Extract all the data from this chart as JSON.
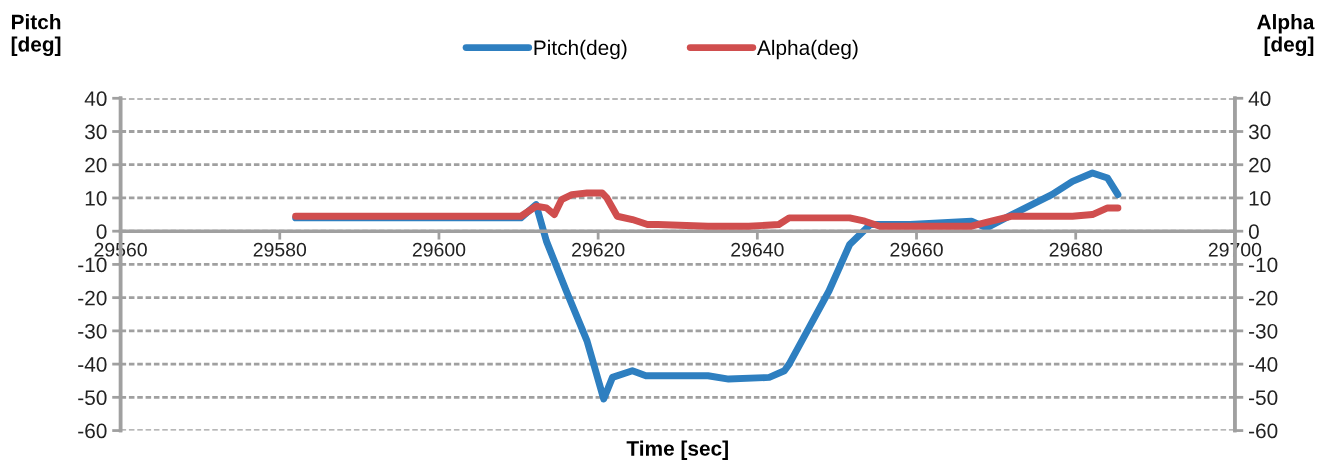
{
  "chart_data": {
    "type": "line",
    "xlabel": "Time [sec]",
    "ylabel": "Pitch\n[deg]",
    "y2label": "Alpha\n[deg]",
    "xlim": [
      29560,
      29700
    ],
    "xticks": [
      29560,
      29580,
      29600,
      29620,
      29640,
      29660,
      29680,
      29700
    ],
    "ylim": [
      -60,
      40
    ],
    "yticks": [
      -60,
      -50,
      -40,
      -30,
      -20,
      -10,
      0,
      10,
      20,
      30,
      40
    ],
    "y2lim": [
      -60,
      40
    ],
    "y2ticks": [
      -60,
      -50,
      -40,
      -30,
      -20,
      -10,
      0,
      10,
      20,
      30,
      40
    ],
    "grid": "y",
    "legend": "top",
    "marker": "none",
    "line_style": "solid",
    "series": [
      {
        "name": "Pitch(deg)",
        "color": "#2e7fc0",
        "x": [
          29582,
          29610.3,
          29612.2,
          29613.5,
          29616,
          29618.6,
          29620.7,
          29621.8,
          29624.3,
          29626,
          29633.8,
          29636.4,
          29641.5,
          29643.4,
          29644,
          29646.5,
          29649,
          29651.6,
          29654.2,
          29659.2,
          29666.9,
          29668.8,
          29672,
          29677,
          29679.6,
          29682.1,
          29684,
          29685.3
        ],
        "values": [
          4,
          4,
          8,
          -3,
          -18,
          -33,
          -50.5,
          -44,
          -42,
          -43.5,
          -43.5,
          -44.5,
          -44,
          -42,
          -40,
          -29,
          -18,
          -4,
          2,
          2,
          3,
          1,
          5,
          11,
          15,
          17.5,
          16,
          11
        ]
      },
      {
        "name": "Alpha(deg)",
        "color": "#d04e4e",
        "axis": "y2",
        "x": [
          29582,
          29610.3,
          29612.2,
          29613.5,
          29614.5,
          29615.4,
          29616.7,
          29618.6,
          29620.5,
          29621.1,
          29622.4,
          29624.3,
          29626.2,
          29627.5,
          29633.8,
          29638.9,
          29642.7,
          29644,
          29651.6,
          29653.5,
          29655.4,
          29666.9,
          29669.4,
          29672,
          29679.6,
          29682.1,
          29684,
          29685.3
        ],
        "values": [
          4.5,
          4.5,
          7.5,
          7,
          5,
          9.5,
          11,
          11.5,
          11.5,
          10,
          4.5,
          3.5,
          2,
          2,
          1.5,
          1.5,
          2,
          4,
          4,
          3,
          1.5,
          1.5,
          3,
          4.5,
          4.5,
          5,
          7,
          7
        ]
      }
    ]
  }
}
